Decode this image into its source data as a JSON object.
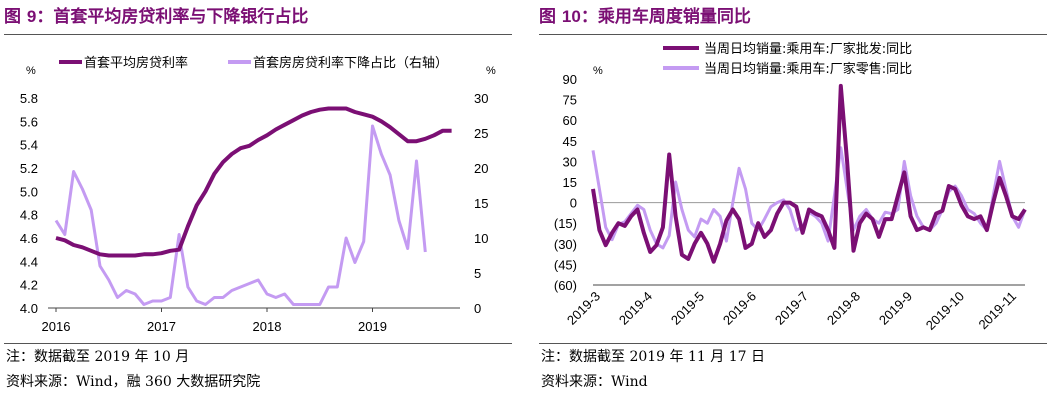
{
  "left": {
    "title_prefix": "图 ",
    "title_num": "9",
    "title_text": "：首套平均房贷利率与下降银行占比",
    "note": "注：数据截至 2019 年 10 月",
    "source": "资料来源：Wind，融 360 大数据研究院"
  },
  "right": {
    "title_prefix": "图 ",
    "title_num": "10",
    "title_text": "：乘用车周度销量同比",
    "note": "注：数据截至 2019 年 11 月 17 日",
    "source": "资料来源：Wind"
  },
  "chart_data": [
    {
      "type": "line",
      "y_unit_left": "%",
      "y_unit_right": "%",
      "ylim_left": [
        4.0,
        5.8
      ],
      "ylim_right": [
        0,
        30
      ],
      "y_ticks_left": [
        "4.0",
        "4.2",
        "4.4",
        "4.6",
        "4.8",
        "5.0",
        "5.2",
        "5.4",
        "5.6",
        "5.8"
      ],
      "y_ticks_right": [
        "0",
        "5",
        "10",
        "15",
        "20",
        "25",
        "30"
      ],
      "x_ticks": [
        "2016",
        "2017",
        "2018",
        "2019"
      ],
      "legend_position": "top",
      "colors": {
        "rate": "#7B0F74",
        "share": "#C49BF2"
      },
      "series": [
        {
          "name": "首套平均房贷利率",
          "axis": "left",
          "x": [
            "2016-01",
            "2016-02",
            "2016-03",
            "2016-04",
            "2016-05",
            "2016-06",
            "2016-07",
            "2016-08",
            "2016-09",
            "2016-10",
            "2016-11",
            "2016-12",
            "2017-01",
            "2017-02",
            "2017-03",
            "2017-04",
            "2017-05",
            "2017-06",
            "2017-07",
            "2017-08",
            "2017-09",
            "2017-10",
            "2017-11",
            "2017-12",
            "2018-01",
            "2018-02",
            "2018-03",
            "2018-04",
            "2018-05",
            "2018-06",
            "2018-07",
            "2018-08",
            "2018-09",
            "2018-10",
            "2018-11",
            "2018-12",
            "2019-01",
            "2019-02",
            "2019-03",
            "2019-04",
            "2019-05",
            "2019-06",
            "2019-07",
            "2019-08",
            "2019-09",
            "2019-10"
          ],
          "values": [
            4.6,
            4.58,
            4.54,
            4.52,
            4.49,
            4.46,
            4.45,
            4.45,
            4.45,
            4.45,
            4.46,
            4.46,
            4.47,
            4.49,
            4.5,
            4.7,
            4.88,
            5.0,
            5.15,
            5.25,
            5.32,
            5.37,
            5.39,
            5.44,
            5.48,
            5.53,
            5.57,
            5.61,
            5.65,
            5.68,
            5.7,
            5.71,
            5.71,
            5.71,
            5.68,
            5.66,
            5.64,
            5.6,
            5.55,
            5.49,
            5.43,
            5.43,
            5.45,
            5.48,
            5.52,
            5.52
          ]
        },
        {
          "name": "首套房房贷利率下降占比（右轴）",
          "axis": "right",
          "x": [
            "2016-01",
            "2016-02",
            "2016-03",
            "2016-04",
            "2016-05",
            "2016-06",
            "2016-07",
            "2016-08",
            "2016-09",
            "2016-10",
            "2016-11",
            "2016-12",
            "2017-01",
            "2017-02",
            "2017-03",
            "2017-04",
            "2017-05",
            "2017-06",
            "2017-07",
            "2017-08",
            "2017-09",
            "2017-10",
            "2017-11",
            "2017-12",
            "2018-01",
            "2018-02",
            "2018-03",
            "2018-04",
            "2018-05",
            "2018-06",
            "2018-07",
            "2018-08",
            "2018-09",
            "2018-10",
            "2018-11",
            "2018-12",
            "2019-01",
            "2019-02",
            "2019-03",
            "2019-04",
            "2019-05",
            "2019-06",
            "2019-07"
          ],
          "values": [
            12.5,
            10.5,
            19.5,
            17,
            14,
            6,
            4,
            1.5,
            2.5,
            2,
            0.5,
            1,
            1,
            1.5,
            10.5,
            3,
            1,
            0.5,
            1.5,
            1.5,
            2.5,
            3,
            3.5,
            4,
            2,
            1.5,
            2,
            0.5,
            0.5,
            0.5,
            0.5,
            3,
            3,
            10,
            6.5,
            9.5,
            26,
            22,
            19,
            12.5,
            8.5,
            21,
            8
          ]
        }
      ]
    },
    {
      "type": "line",
      "y_unit": "%",
      "ylim": [
        -60,
        90
      ],
      "y_ticks": [
        "(60)",
        "(45)",
        "(30)",
        "(15)",
        "0",
        "15",
        "30",
        "45",
        "60",
        "75",
        "90"
      ],
      "x_ticks": [
        "2019-3",
        "2019-4",
        "2019-5",
        "2019-6",
        "2019-7",
        "2019-8",
        "2019-9",
        "2019-10",
        "2019-11"
      ],
      "reference_line": 0,
      "legend_position": "top",
      "colors": {
        "wholesale": "#7B0F74",
        "retail": "#C49BF2"
      },
      "series": [
        {
          "name": "当周日均销量:乘用车:厂家批发:同比",
          "values": [
            10,
            -20,
            -31,
            -22,
            -15,
            -17,
            -10,
            -5,
            -22,
            -36,
            -31,
            -18,
            35,
            -10,
            -38,
            -41,
            -30,
            -22,
            -30,
            -43,
            -30,
            -13,
            -5,
            -12,
            -33,
            -30,
            -15,
            -25,
            -20,
            -8,
            0,
            0,
            -3,
            -22,
            -5,
            -8,
            -10,
            -20,
            -33,
            85,
            30,
            -35,
            -15,
            -8,
            -12,
            -25,
            -12,
            -12,
            5,
            22,
            -10,
            -20,
            -18,
            -20,
            -8,
            -6,
            12,
            10,
            -2,
            -10,
            -12,
            -10,
            -20,
            0,
            18,
            5,
            -10,
            -12,
            -5
          ]
        },
        {
          "name": "当周日均销量:乘用车:厂家零售:同比",
          "values": [
            38,
            10,
            -18,
            -27,
            -16,
            -14,
            -8,
            -2,
            -5,
            -20,
            -30,
            -33,
            -24,
            15,
            -5,
            -20,
            -25,
            -12,
            -15,
            -5,
            -10,
            -28,
            0,
            25,
            10,
            -15,
            -20,
            -12,
            -3,
            0,
            2,
            -5,
            -20,
            -18,
            -7,
            -10,
            -15,
            -28,
            5,
            40,
            10,
            -20,
            -10,
            -5,
            -12,
            -15,
            -7,
            -8,
            -5,
            30,
            5,
            -10,
            -18,
            -20,
            -15,
            -5,
            8,
            12,
            5,
            -5,
            -8,
            -15,
            -20,
            5,
            30,
            10,
            -10,
            -18,
            -5
          ]
        }
      ]
    }
  ]
}
